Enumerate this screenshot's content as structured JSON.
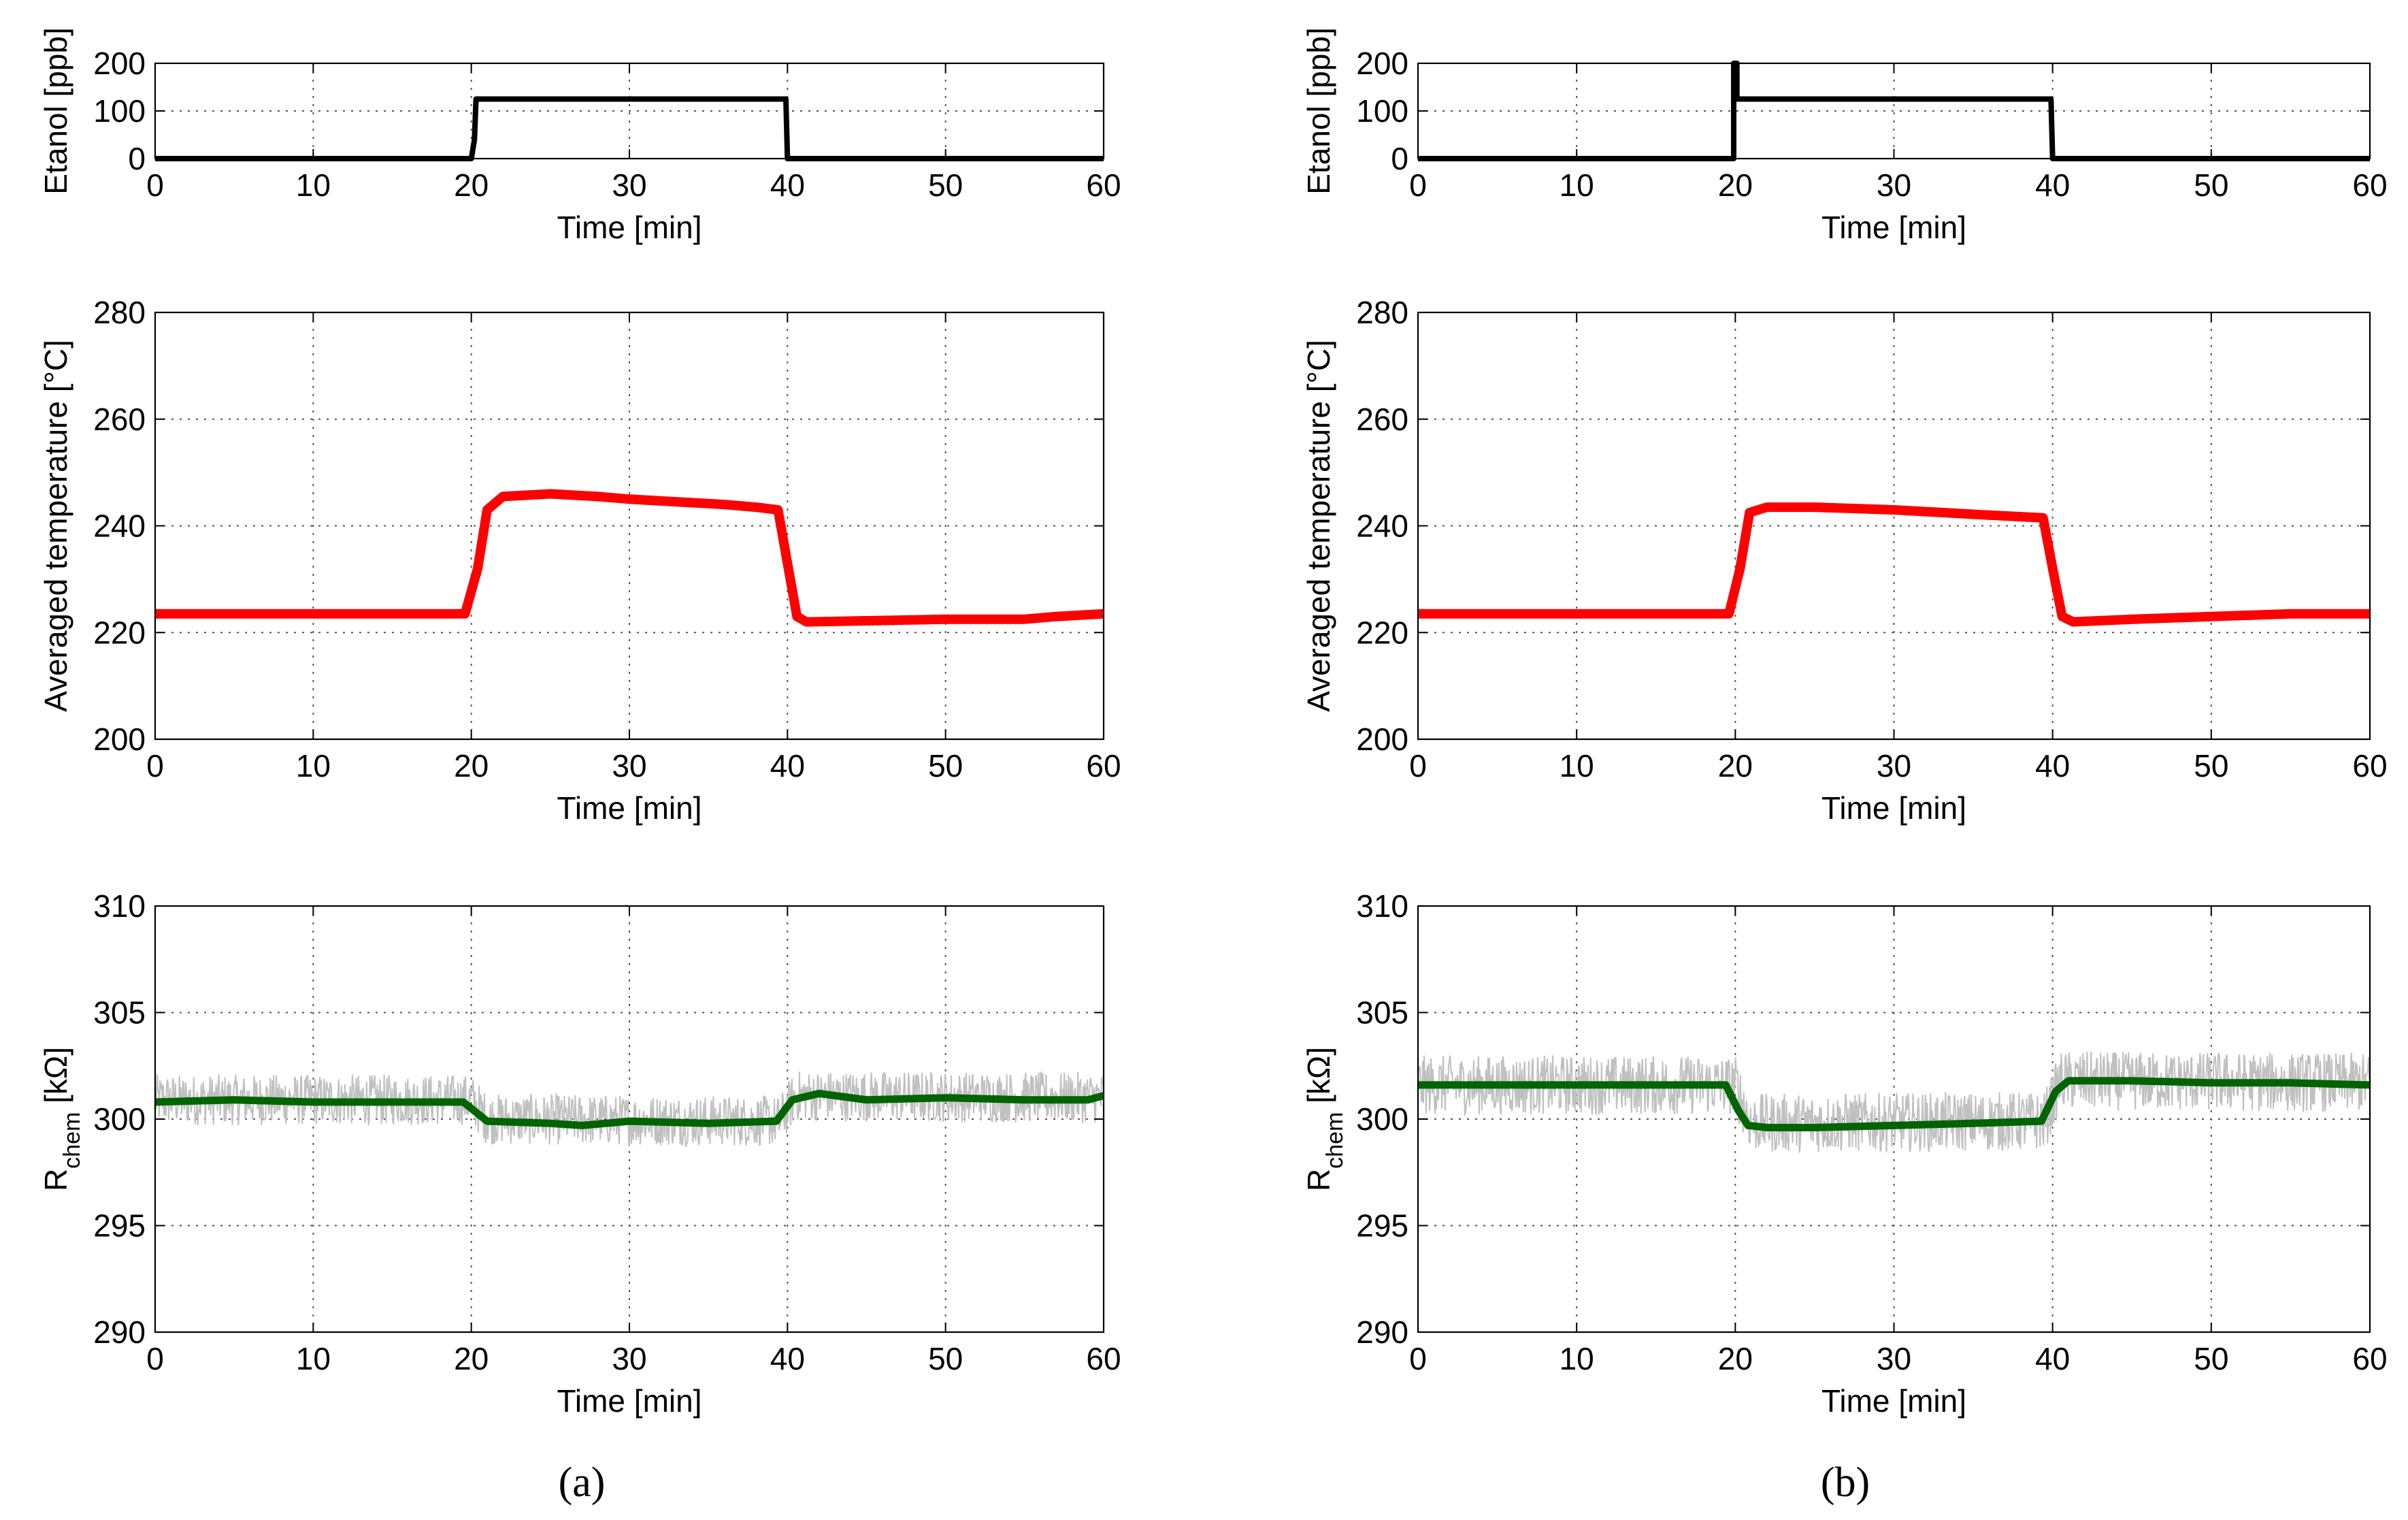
{
  "figure": {
    "panel_labels": [
      "(a)",
      "(b)"
    ]
  },
  "chart_data": [
    {
      "panel": "(a)",
      "type": "line",
      "xlabel": "Time [min]",
      "ylabel": "Etanol [ppb]",
      "xlim": [
        0,
        60
      ],
      "ylim": [
        0,
        200
      ],
      "xticks": [
        0,
        10,
        20,
        30,
        40,
        50,
        60
      ],
      "yticks": [
        0,
        100,
        200
      ],
      "grid": true,
      "series": [
        {
          "color": "#000000",
          "x": [
            0,
            20,
            20.2,
            20.3,
            39.9,
            40.0,
            60
          ],
          "y": [
            0,
            0,
            40,
            125,
            125,
            0,
            0
          ]
        }
      ]
    },
    {
      "panel": "(a)",
      "type": "line",
      "xlabel": "Time [min]",
      "ylabel": "Averaged temperature [°C]",
      "xlim": [
        0,
        60
      ],
      "ylim": [
        200,
        280
      ],
      "xticks": [
        0,
        10,
        20,
        30,
        40,
        50,
        60
      ],
      "yticks": [
        200,
        220,
        240,
        260,
        280
      ],
      "grid": true,
      "series": [
        {
          "color": "#ff0000",
          "x": [
            0,
            19.6,
            20.4,
            21.0,
            22,
            25,
            28,
            30,
            33,
            36,
            38,
            39.4,
            40.0,
            40.6,
            41.2,
            45,
            50,
            55,
            57,
            60
          ],
          "y": [
            223.5,
            223.5,
            232,
            243,
            245.5,
            246,
            245.5,
            245,
            244.5,
            244,
            243.5,
            243,
            233,
            223,
            222,
            222.2,
            222.5,
            222.5,
            223,
            223.5
          ]
        }
      ]
    },
    {
      "panel": "(a)",
      "type": "line",
      "xlabel": "Time [min]",
      "ylabel": "R_chem [kΩ]",
      "ylabel_main": "R",
      "ylabel_sub": "chem",
      "ylabel_unit": " [kΩ]",
      "xlim": [
        0,
        60
      ],
      "ylim": [
        290,
        310
      ],
      "xticks": [
        0,
        10,
        20,
        30,
        40,
        50,
        60
      ],
      "yticks": [
        290,
        295,
        300,
        305,
        310
      ],
      "grid": true,
      "series": [
        {
          "color": "#c0c0c0",
          "x": [
            0,
            20,
            21,
            39.5,
            40.5,
            60
          ],
          "y": [
            300.9,
            300.9,
            300,
            299.9,
            301.1,
            301
          ],
          "noise_amplitude": 1.2
        },
        {
          "color": "#006400",
          "x": [
            0,
            5,
            10,
            15,
            19.5,
            20.5,
            21,
            25,
            27,
            30,
            35,
            39.3,
            40.3,
            42,
            44,
            45,
            50,
            55,
            59,
            60
          ],
          "y": [
            300.8,
            300.9,
            300.8,
            300.8,
            300.8,
            300.2,
            299.9,
            299.8,
            299.7,
            299.9,
            299.8,
            299.9,
            300.9,
            301.2,
            301,
            300.9,
            301,
            300.9,
            300.9,
            301.1
          ]
        }
      ]
    },
    {
      "panel": "(b)",
      "type": "line",
      "xlabel": "Time [min]",
      "ylabel": "Etanol [ppb]",
      "xlim": [
        0,
        60
      ],
      "ylim": [
        0,
        200
      ],
      "xticks": [
        0,
        10,
        20,
        30,
        40,
        50,
        60
      ],
      "yticks": [
        0,
        100,
        200
      ],
      "grid": true,
      "series": [
        {
          "color": "#000000",
          "x": [
            0,
            19.9,
            19.9,
            20.1,
            20.1,
            39.9,
            40.0,
            60
          ],
          "y": [
            0,
            0,
            200,
            200,
            125,
            125,
            0,
            0
          ]
        }
      ]
    },
    {
      "panel": "(b)",
      "type": "line",
      "xlabel": "Time [min]",
      "ylabel": "Averaged temperature [°C]",
      "xlim": [
        0,
        60
      ],
      "ylim": [
        200,
        280
      ],
      "xticks": [
        0,
        10,
        20,
        30,
        40,
        50,
        60
      ],
      "yticks": [
        200,
        220,
        240,
        260,
        280
      ],
      "grid": true,
      "series": [
        {
          "color": "#ff0000",
          "x": [
            0,
            19.6,
            20.3,
            20.9,
            22,
            25,
            30,
            33,
            36,
            39.4,
            40.0,
            40.6,
            41.3,
            45,
            50,
            55,
            60
          ],
          "y": [
            223.5,
            223.5,
            232,
            242.5,
            243.5,
            243.5,
            243,
            242.5,
            242,
            241.5,
            232,
            223,
            222,
            222.5,
            223,
            223.5,
            223.5
          ]
        }
      ]
    },
    {
      "panel": "(b)",
      "type": "line",
      "xlabel": "Time [min]",
      "ylabel": "R_chem [kΩ]",
      "ylabel_main": "R",
      "ylabel_sub": "chem",
      "ylabel_unit": " [kΩ]",
      "xlim": [
        0,
        60
      ],
      "ylim": [
        290,
        310
      ],
      "xticks": [
        0,
        10,
        20,
        30,
        40,
        50,
        60
      ],
      "yticks": [
        290,
        295,
        300,
        305,
        310
      ],
      "grid": true,
      "series": [
        {
          "color": "#c0c0c0",
          "x": [
            0,
            20,
            21,
            39.5,
            40.5,
            60
          ],
          "y": [
            301.6,
            301.6,
            299.8,
            299.9,
            301.8,
            301.7
          ],
          "noise_amplitude": 1.4
        },
        {
          "color": "#006400",
          "x": [
            0,
            5,
            10,
            15,
            19.4,
            20.2,
            20.8,
            22,
            25,
            30,
            35,
            39.3,
            40.2,
            41,
            45,
            50,
            55,
            60
          ],
          "y": [
            301.6,
            301.6,
            301.6,
            301.6,
            301.6,
            300.4,
            299.7,
            299.6,
            299.6,
            299.7,
            299.8,
            299.9,
            301.3,
            301.8,
            301.8,
            301.7,
            301.7,
            301.6
          ]
        }
      ]
    }
  ]
}
